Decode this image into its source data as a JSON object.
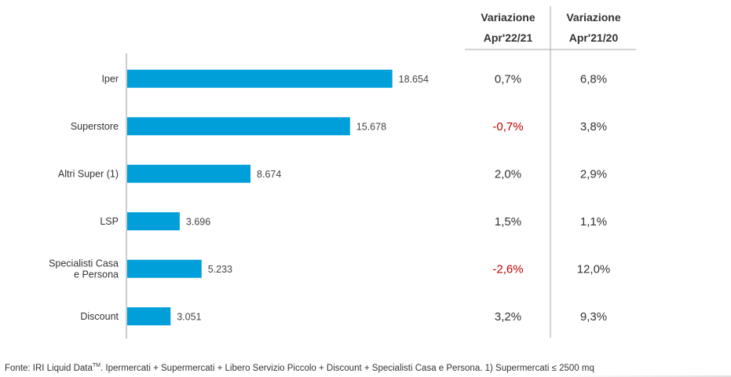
{
  "chart_data": {
    "type": "bar",
    "orientation": "horizontal",
    "categories": [
      "Iper",
      "Superstore",
      "Altri Super (1)",
      "LSP",
      "Specialisti Casa e Persona",
      "Discount"
    ],
    "category_lines": [
      [
        "Iper"
      ],
      [
        "Superstore"
      ],
      [
        "Altri Super (1)"
      ],
      [
        "LSP"
      ],
      [
        "Specialisti Casa",
        "e Persona"
      ],
      [
        "Discount"
      ]
    ],
    "values": [
      18654,
      15678,
      8674,
      3696,
      5233,
      3051
    ],
    "value_labels": [
      "18.654",
      "15.678",
      "8.674",
      "3.696",
      "5.233",
      "3.051"
    ],
    "xlim": [
      0,
      19500
    ],
    "bar_color": "#009fda",
    "grid": false,
    "table": {
      "columns": [
        {
          "header_line1": "Variazione",
          "header_line2": "Apr'22/21",
          "values": [
            "0,7%",
            "-0,7%",
            "2,0%",
            "1,5%",
            "-2,6%",
            "3,2%"
          ]
        },
        {
          "header_line1": "Variazione",
          "header_line2": "Apr'21/20",
          "values": [
            "6,8%",
            "3,8%",
            "2,9%",
            "1,1%",
            "12,0%",
            "9,3%"
          ]
        }
      ],
      "negative_color": "#c00000"
    }
  },
  "footer": {
    "text_before": "Fonte: IRI Liquid Data",
    "superscript": "TM",
    "text_after": ".  Ipermercati + Supermercati + Libero Servizio Piccolo + Discount + Specialisti Casa e Persona. 1) Supermercati ≤ 2500 mq"
  }
}
